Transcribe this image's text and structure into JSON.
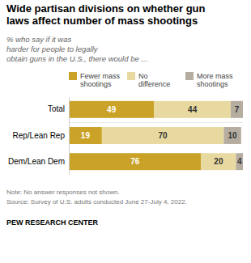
{
  "chart_data": {
    "type": "bar",
    "orientation": "horizontal",
    "stacked": true,
    "data_labels": true,
    "tick_labels": false,
    "title": "Wide partisan divisions on whether gun\nlaws affect number of mass shootings",
    "subtitle": "% who say if it was\nharder for people to legally\nobtain guns in the U.S., there would be ...",
    "annotations": [
      "Note: No answer responses not shown.",
      "Source: Survey of U.S. adults conducted June 27-July 4, 2022.",
      "PEW RESEARCH CENTER"
    ],
    "categories": [
      "Total",
      "Rep/Lean Rep",
      "Dem/Lean Dem"
    ],
    "series": [
      {
        "name": "Fewer mass\nshootings",
        "color": "#C9A227",
        "values": [
          49,
          19,
          76
        ]
      },
      {
        "name": "No\ndifference",
        "color": "#E8D9A0",
        "values": [
          44,
          70,
          20
        ]
      },
      {
        "name": "More mass\nshootings",
        "color": "#B5ADA0",
        "values": [
          7,
          10,
          4
        ]
      }
    ],
    "xlim": [
      0,
      100
    ]
  }
}
